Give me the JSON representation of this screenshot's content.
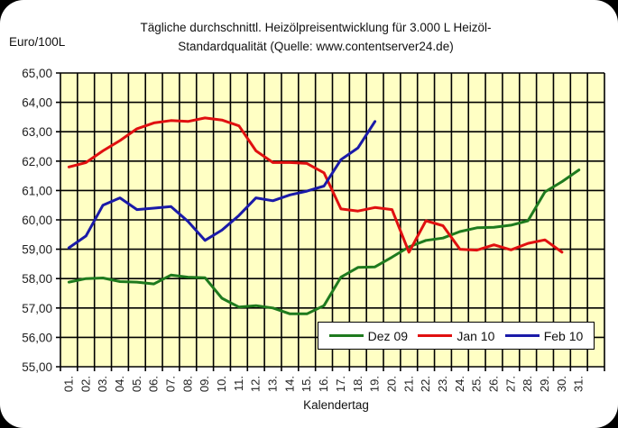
{
  "chart_data": {
    "type": "line",
    "title": "Tägliche durchschnittl. Heizölpreisentwicklung für 3.000 L Heizöl-Standardqualität (Quelle: www.contentserver24.de)",
    "title_lines": [
      "Tägliche durchschnittl. Heizölpreisentwicklung für 3.000 L Heizöl-",
      "Standardqualität (Quelle: www.contentserver24.de)"
    ],
    "xlabel": "Kalendertag",
    "ylabel": "Euro/100L",
    "ylim": [
      55,
      65
    ],
    "yticks": [
      "55,00",
      "56,00",
      "57,00",
      "58,00",
      "59,00",
      "60,00",
      "61,00",
      "62,00",
      "63,00",
      "64,00",
      "65,00"
    ],
    "categories": [
      "01.",
      "02.",
      "03.",
      "04.",
      "05.",
      "06.",
      "07.",
      "08.",
      "09.",
      "10.",
      "11.",
      "12.",
      "13.",
      "14.",
      "15.",
      "16.",
      "17.",
      "18.",
      "19.",
      "20.",
      "21.",
      "22.",
      "23.",
      "24.",
      "25.",
      "26.",
      "27.",
      "28.",
      "29.",
      "30.",
      "31."
    ],
    "grid": true,
    "legend_position": "bottom-right-inside",
    "plot_background": "#ffffc4",
    "series": [
      {
        "name": "Dez 09",
        "color": "#1e7a1e",
        "values": [
          57.88,
          58.0,
          58.02,
          57.9,
          57.88,
          57.82,
          58.12,
          58.05,
          58.03,
          57.33,
          57.03,
          57.08,
          57.0,
          56.8,
          56.8,
          57.08,
          58.05,
          58.38,
          58.4,
          58.73,
          59.08,
          59.3,
          59.38,
          59.6,
          59.73,
          59.75,
          59.82,
          59.97,
          60.95,
          61.3,
          61.7
        ]
      },
      {
        "name": "Jan 10",
        "color": "#e01010",
        "values": [
          61.8,
          61.95,
          62.35,
          62.7,
          63.1,
          63.3,
          63.38,
          63.35,
          63.47,
          63.4,
          63.2,
          62.35,
          61.95,
          61.95,
          61.92,
          61.6,
          60.37,
          60.3,
          60.42,
          60.35,
          58.9,
          59.97,
          59.8,
          59.0,
          58.97,
          59.15,
          58.98,
          59.2,
          59.32,
          58.9,
          null
        ]
      },
      {
        "name": "Feb 10",
        "color": "#1a1aa8",
        "values": [
          59.05,
          59.45,
          60.5,
          60.75,
          60.35,
          60.4,
          60.45,
          59.95,
          59.3,
          59.65,
          60.15,
          60.75,
          60.65,
          60.85,
          60.98,
          61.15,
          62.05,
          62.45,
          63.35,
          null,
          null,
          null,
          null,
          null,
          null,
          null,
          null,
          null,
          null,
          null,
          null
        ]
      }
    ]
  }
}
